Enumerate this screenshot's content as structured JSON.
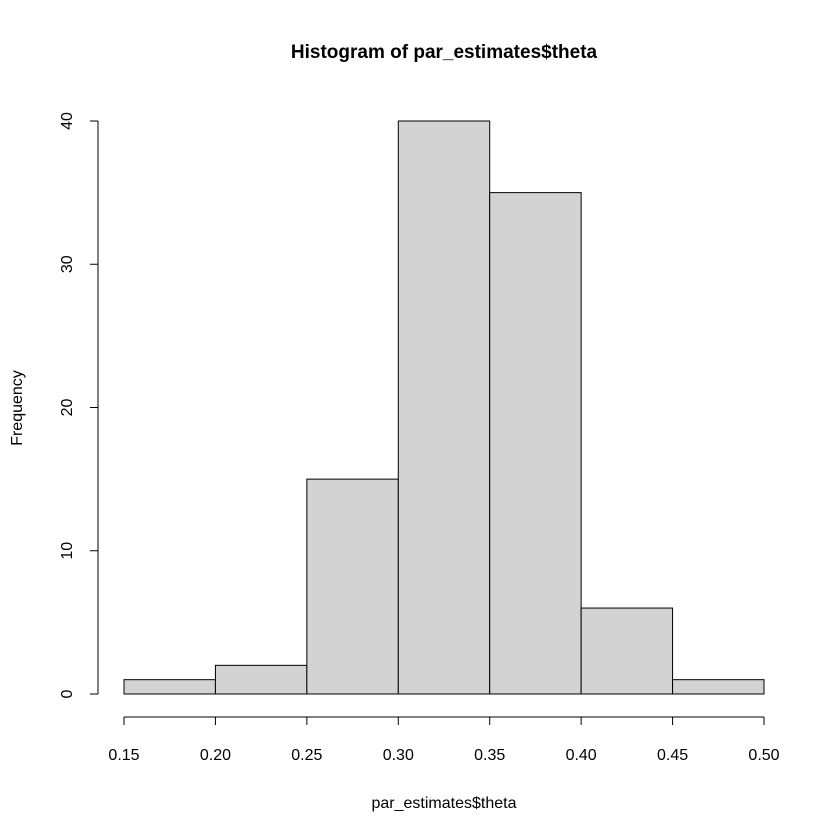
{
  "chart_data": {
    "type": "histogram",
    "title": "Histogram of par_estimates$theta",
    "xlabel": "par_estimates$theta",
    "ylabel": "Frequency",
    "bins": [
      {
        "from": 0.15,
        "to": 0.2,
        "count": 1
      },
      {
        "from": 0.2,
        "to": 0.25,
        "count": 2
      },
      {
        "from": 0.25,
        "to": 0.3,
        "count": 15
      },
      {
        "from": 0.3,
        "to": 0.35,
        "count": 40
      },
      {
        "from": 0.35,
        "to": 0.4,
        "count": 35
      },
      {
        "from": 0.4,
        "to": 0.45,
        "count": 6
      },
      {
        "from": 0.45,
        "to": 0.5,
        "count": 1
      }
    ],
    "xlim": [
      0.15,
      0.5
    ],
    "ylim": [
      0,
      40
    ],
    "x_ticks": [
      "0.15",
      "0.20",
      "0.25",
      "0.30",
      "0.35",
      "0.40",
      "0.45",
      "0.50"
    ],
    "y_ticks": [
      "0",
      "10",
      "20",
      "30",
      "40"
    ],
    "bar_fill": "#d3d3d3",
    "bar_stroke": "#000000",
    "grid": false,
    "legend": "none"
  }
}
